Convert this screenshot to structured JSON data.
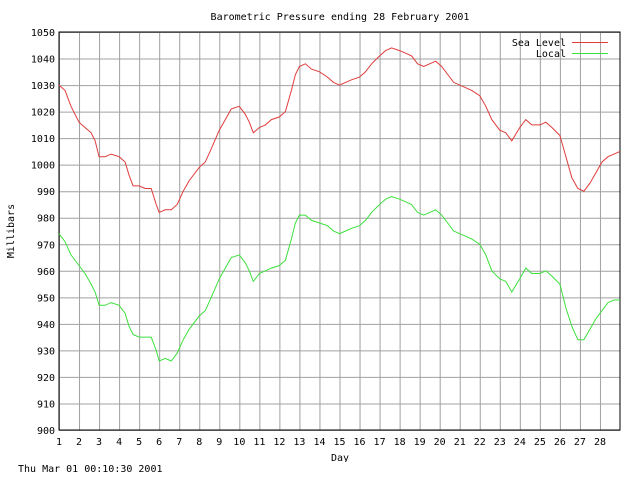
{
  "footer": "Thu Mar 01 00:10:30 2001",
  "chart_data": {
    "type": "line",
    "title": "Barometric Pressure ending 28 February 2001",
    "xlabel": "Day",
    "ylabel": "Millibars",
    "xlim": [
      1,
      29
    ],
    "ylim": [
      900,
      1050
    ],
    "x_ticks": [
      "1",
      "2",
      "3",
      "4",
      "5",
      "6",
      "7",
      "8",
      "9",
      "10",
      "11",
      "12",
      "13",
      "14",
      "15",
      "16",
      "17",
      "18",
      "19",
      "20",
      "21",
      "22",
      "23",
      "24",
      "25",
      "26",
      "27",
      "28"
    ],
    "y_ticks": [
      900,
      910,
      920,
      930,
      940,
      950,
      960,
      970,
      980,
      990,
      1000,
      1010,
      1020,
      1030,
      1040,
      1050
    ],
    "grid": true,
    "legend_position": "top-right",
    "series": [
      {
        "name": "Sea Level",
        "color": "#e03c3c",
        "points": [
          [
            1.0,
            1030
          ],
          [
            1.3,
            1028
          ],
          [
            1.6,
            1022
          ],
          [
            2.0,
            1016
          ],
          [
            2.3,
            1014
          ],
          [
            2.6,
            1012
          ],
          [
            2.8,
            1009
          ],
          [
            3.0,
            1003
          ],
          [
            3.3,
            1003
          ],
          [
            3.6,
            1004
          ],
          [
            4.0,
            1003
          ],
          [
            4.3,
            1001
          ],
          [
            4.5,
            996
          ],
          [
            4.7,
            992
          ],
          [
            5.0,
            992
          ],
          [
            5.3,
            991
          ],
          [
            5.6,
            991
          ],
          [
            5.85,
            985
          ],
          [
            6.0,
            982
          ],
          [
            6.3,
            983
          ],
          [
            6.6,
            983
          ],
          [
            6.9,
            985
          ],
          [
            7.2,
            990
          ],
          [
            7.5,
            994
          ],
          [
            8.0,
            999
          ],
          [
            8.3,
            1001
          ],
          [
            8.6,
            1006
          ],
          [
            9.0,
            1013
          ],
          [
            9.3,
            1017
          ],
          [
            9.6,
            1021
          ],
          [
            10.0,
            1022
          ],
          [
            10.3,
            1019
          ],
          [
            10.5,
            1016
          ],
          [
            10.7,
            1012
          ],
          [
            11.0,
            1014
          ],
          [
            11.3,
            1015
          ],
          [
            11.6,
            1017
          ],
          [
            12.0,
            1018
          ],
          [
            12.3,
            1020
          ],
          [
            12.6,
            1028
          ],
          [
            12.8,
            1034
          ],
          [
            13.0,
            1037
          ],
          [
            13.3,
            1038
          ],
          [
            13.6,
            1036
          ],
          [
            14.0,
            1035
          ],
          [
            14.4,
            1033
          ],
          [
            14.7,
            1031
          ],
          [
            15.0,
            1030
          ],
          [
            15.3,
            1031
          ],
          [
            15.6,
            1032
          ],
          [
            16.0,
            1033
          ],
          [
            16.3,
            1035
          ],
          [
            16.6,
            1038
          ],
          [
            17.0,
            1041
          ],
          [
            17.3,
            1043
          ],
          [
            17.6,
            1044
          ],
          [
            18.0,
            1043
          ],
          [
            18.3,
            1042
          ],
          [
            18.6,
            1041
          ],
          [
            18.9,
            1038
          ],
          [
            19.2,
            1037
          ],
          [
            19.5,
            1038
          ],
          [
            19.8,
            1039
          ],
          [
            20.1,
            1037
          ],
          [
            20.4,
            1034
          ],
          [
            20.7,
            1031
          ],
          [
            21.0,
            1030
          ],
          [
            21.3,
            1029
          ],
          [
            21.6,
            1028
          ],
          [
            22.0,
            1026
          ],
          [
            22.3,
            1022
          ],
          [
            22.6,
            1017
          ],
          [
            23.0,
            1013
          ],
          [
            23.3,
            1012
          ],
          [
            23.6,
            1009
          ],
          [
            24.0,
            1014
          ],
          [
            24.3,
            1017
          ],
          [
            24.6,
            1015
          ],
          [
            25.0,
            1015
          ],
          [
            25.3,
            1016
          ],
          [
            25.6,
            1014
          ],
          [
            26.0,
            1011
          ],
          [
            26.3,
            1003
          ],
          [
            26.6,
            995
          ],
          [
            26.9,
            991
          ],
          [
            27.2,
            990
          ],
          [
            27.5,
            993
          ],
          [
            27.8,
            997
          ],
          [
            28.1,
            1001
          ],
          [
            28.4,
            1003
          ],
          [
            28.7,
            1004
          ],
          [
            29.0,
            1005
          ]
        ]
      },
      {
        "name": "Local",
        "color": "#3ce03c",
        "points": [
          [
            1.0,
            974
          ],
          [
            1.3,
            971
          ],
          [
            1.6,
            966
          ],
          [
            2.0,
            962
          ],
          [
            2.3,
            959
          ],
          [
            2.6,
            955
          ],
          [
            2.8,
            952
          ],
          [
            3.0,
            947
          ],
          [
            3.3,
            947
          ],
          [
            3.6,
            948
          ],
          [
            4.0,
            947
          ],
          [
            4.3,
            944
          ],
          [
            4.5,
            939
          ],
          [
            4.7,
            936
          ],
          [
            5.0,
            935
          ],
          [
            5.3,
            935
          ],
          [
            5.6,
            935
          ],
          [
            5.85,
            930
          ],
          [
            6.0,
            926
          ],
          [
            6.3,
            927
          ],
          [
            6.6,
            926
          ],
          [
            6.9,
            929
          ],
          [
            7.2,
            934
          ],
          [
            7.5,
            938
          ],
          [
            8.0,
            943
          ],
          [
            8.3,
            945
          ],
          [
            8.6,
            950
          ],
          [
            9.0,
            957
          ],
          [
            9.3,
            961
          ],
          [
            9.6,
            965
          ],
          [
            10.0,
            966
          ],
          [
            10.3,
            963
          ],
          [
            10.5,
            960
          ],
          [
            10.7,
            956
          ],
          [
            11.0,
            959
          ],
          [
            11.3,
            960
          ],
          [
            11.6,
            961
          ],
          [
            12.0,
            962
          ],
          [
            12.3,
            964
          ],
          [
            12.6,
            972
          ],
          [
            12.8,
            978
          ],
          [
            13.0,
            981
          ],
          [
            13.3,
            981
          ],
          [
            13.6,
            979
          ],
          [
            14.0,
            978
          ],
          [
            14.4,
            977
          ],
          [
            14.7,
            975
          ],
          [
            15.0,
            974
          ],
          [
            15.3,
            975
          ],
          [
            15.6,
            976
          ],
          [
            16.0,
            977
          ],
          [
            16.3,
            979
          ],
          [
            16.6,
            982
          ],
          [
            17.0,
            985
          ],
          [
            17.3,
            987
          ],
          [
            17.6,
            988
          ],
          [
            18.0,
            987
          ],
          [
            18.3,
            986
          ],
          [
            18.6,
            985
          ],
          [
            18.9,
            982
          ],
          [
            19.2,
            981
          ],
          [
            19.5,
            982
          ],
          [
            19.8,
            983
          ],
          [
            20.1,
            981
          ],
          [
            20.4,
            978
          ],
          [
            20.7,
            975
          ],
          [
            21.0,
            974
          ],
          [
            21.3,
            973
          ],
          [
            21.6,
            972
          ],
          [
            22.0,
            970
          ],
          [
            22.3,
            966
          ],
          [
            22.6,
            960
          ],
          [
            23.0,
            957
          ],
          [
            23.3,
            956
          ],
          [
            23.6,
            952
          ],
          [
            24.0,
            957
          ],
          [
            24.3,
            961
          ],
          [
            24.6,
            959
          ],
          [
            25.0,
            959
          ],
          [
            25.3,
            960
          ],
          [
            25.6,
            958
          ],
          [
            26.0,
            955
          ],
          [
            26.3,
            946
          ],
          [
            26.6,
            939
          ],
          [
            26.9,
            934
          ],
          [
            27.2,
            934
          ],
          [
            27.5,
            938
          ],
          [
            27.8,
            942
          ],
          [
            28.1,
            945
          ],
          [
            28.4,
            948
          ],
          [
            28.7,
            949
          ],
          [
            29.0,
            949
          ]
        ]
      }
    ]
  }
}
